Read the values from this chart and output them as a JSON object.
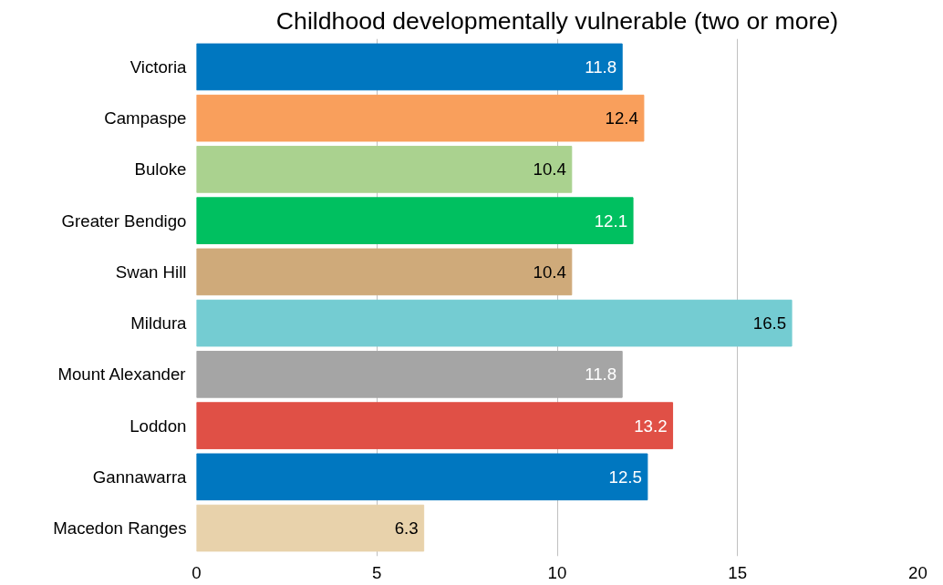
{
  "chart_data": {
    "type": "bar",
    "orientation": "horizontal",
    "title": "Childhood developmentally vulnerable (two or more)",
    "categories": [
      "Victoria",
      "Campaspe",
      "Buloke",
      "Greater Bendigo",
      "Swan Hill",
      "Mildura",
      "Mount Alexander",
      "Loddon",
      "Gannawarra",
      "Macedon Ranges"
    ],
    "values": [
      11.8,
      12.4,
      10.4,
      12.1,
      10.4,
      16.5,
      11.8,
      13.2,
      12.5,
      6.3
    ],
    "colors": [
      "#0077c0",
      "#f99f5c",
      "#aad28f",
      "#00c060",
      "#cfaa7a",
      "#74ccd2",
      "#a5a5a5",
      "#e05046",
      "#0077c0",
      "#e8d2ab"
    ],
    "xlim": [
      0,
      20
    ],
    "xticks": [
      0,
      5,
      10,
      15,
      20
    ],
    "grid": "x",
    "data_labels": true
  }
}
